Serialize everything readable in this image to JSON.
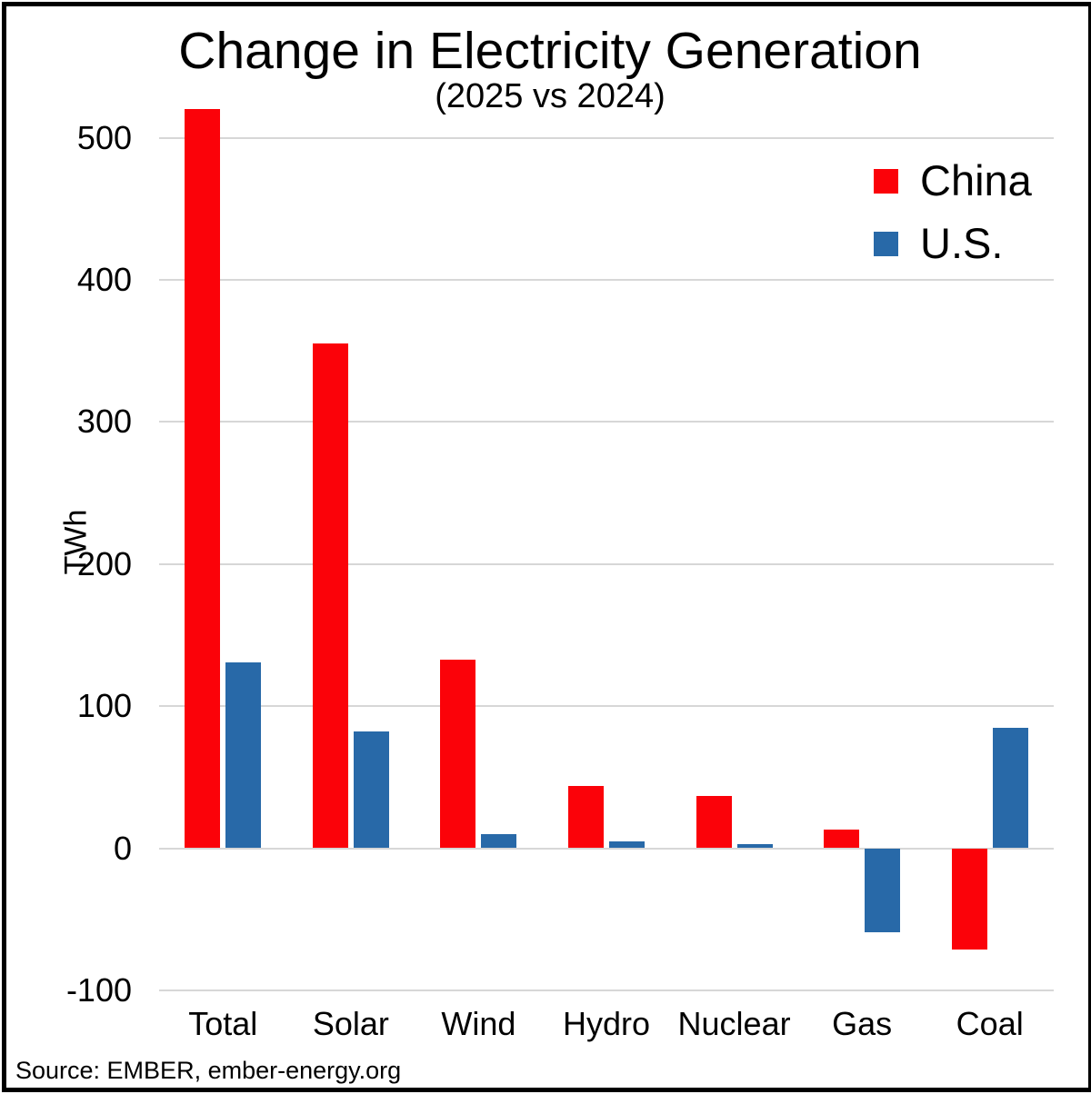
{
  "title": "Change in Electricity Generation",
  "subtitle": "(2025 vs 2024)",
  "source": "Source: EMBER, ember-energy.org",
  "chart_data": {
    "type": "bar",
    "title": "Change in Electricity Generation",
    "subtitle": "(2025 vs 2024)",
    "categories": [
      "Total",
      "Solar",
      "Wind",
      "Hydro",
      "Nuclear",
      "Gas",
      "Coal"
    ],
    "series": [
      {
        "name": "China",
        "color": "#FB0209",
        "values": [
          520,
          355,
          133,
          44,
          37,
          13,
          -71
        ]
      },
      {
        "name": "U.S.",
        "color": "#2869A8",
        "values": [
          131,
          82,
          10,
          5,
          3,
          -59,
          85
        ]
      }
    ],
    "xlabel": "",
    "ylabel": "TWh",
    "yticks": [
      500,
      400,
      300,
      200,
      100,
      0,
      -100
    ],
    "ylim": [
      -130,
      535
    ],
    "grid": true,
    "gridline_color": "#d7d7d7",
    "legend_position": "top-right",
    "units": "TWh"
  }
}
